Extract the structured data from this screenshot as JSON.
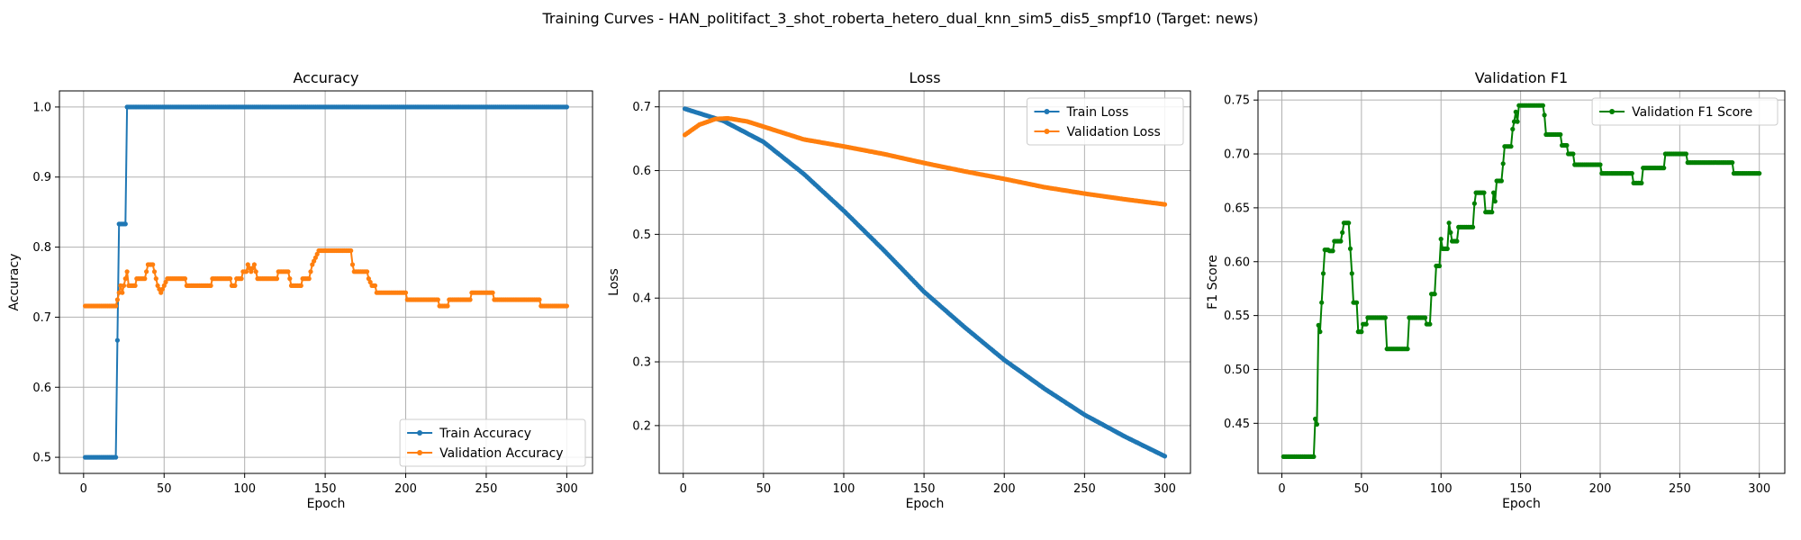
{
  "figure": {
    "title": "Training Curves - HAN_politifact_3_shot_roberta_hetero_dual_knn_sim5_dis5_smpf10 (Target: news)"
  },
  "colors": {
    "train": "#1f77b4",
    "validation": "#ff7f0e",
    "f1": "#008000"
  },
  "chart_data": [
    {
      "type": "line",
      "title": "Accuracy",
      "xlabel": "Epoch",
      "ylabel": "Accuracy",
      "xlim": [
        -15,
        316
      ],
      "ylim": [
        0.477,
        1.023
      ],
      "xticks": [
        0,
        50,
        100,
        150,
        200,
        250,
        300
      ],
      "yticks": [
        0.5,
        0.6,
        0.7,
        0.8,
        0.9,
        1.0
      ],
      "yticks_text": [
        "0.5",
        "0.6",
        "0.7",
        "0.8",
        "0.9",
        "1.0"
      ],
      "grid": true,
      "legend_position": "lower right",
      "series": [
        {
          "name": "Train Accuracy",
          "color": "#1f77b4",
          "points": [
            [
              1,
              0.5
            ],
            [
              20,
              0.5
            ],
            [
              21,
              0.667
            ],
            [
              22,
              0.833
            ],
            [
              26,
              0.833
            ],
            [
              27,
              1.0
            ],
            [
              300,
              1.0
            ]
          ]
        },
        {
          "name": "Validation Accuracy",
          "color": "#ff7f0e",
          "points": [
            [
              1,
              0.716
            ],
            [
              20,
              0.716
            ],
            [
              21,
              0.725
            ],
            [
              22,
              0.735
            ],
            [
              23,
              0.745
            ],
            [
              24,
              0.735
            ],
            [
              26,
              0.755
            ],
            [
              27,
              0.765
            ],
            [
              28,
              0.745
            ],
            [
              32,
              0.745
            ],
            [
              33,
              0.755
            ],
            [
              38,
              0.755
            ],
            [
              39,
              0.765
            ],
            [
              40,
              0.775
            ],
            [
              43,
              0.775
            ],
            [
              44,
              0.765
            ],
            [
              45,
              0.755
            ],
            [
              46,
              0.745
            ],
            [
              48,
              0.735
            ],
            [
              50,
              0.745
            ],
            [
              52,
              0.755
            ],
            [
              63,
              0.755
            ],
            [
              64,
              0.745
            ],
            [
              79,
              0.745
            ],
            [
              80,
              0.755
            ],
            [
              91,
              0.755
            ],
            [
              92,
              0.745
            ],
            [
              94,
              0.745
            ],
            [
              95,
              0.755
            ],
            [
              98,
              0.755
            ],
            [
              99,
              0.765
            ],
            [
              101,
              0.765
            ],
            [
              102,
              0.775
            ],
            [
              104,
              0.765
            ],
            [
              106,
              0.775
            ],
            [
              107,
              0.765
            ],
            [
              108,
              0.755
            ],
            [
              120,
              0.755
            ],
            [
              121,
              0.765
            ],
            [
              127,
              0.765
            ],
            [
              128,
              0.755
            ],
            [
              129,
              0.745
            ],
            [
              135,
              0.745
            ],
            [
              136,
              0.755
            ],
            [
              140,
              0.755
            ],
            [
              141,
              0.765
            ],
            [
              142,
              0.775
            ],
            [
              144,
              0.785
            ],
            [
              146,
              0.795
            ],
            [
              166,
              0.795
            ],
            [
              167,
              0.775
            ],
            [
              168,
              0.765
            ],
            [
              176,
              0.765
            ],
            [
              177,
              0.755
            ],
            [
              179,
              0.745
            ],
            [
              181,
              0.745
            ],
            [
              182,
              0.735
            ],
            [
              200,
              0.735
            ],
            [
              201,
              0.725
            ],
            [
              220,
              0.725
            ],
            [
              221,
              0.716
            ],
            [
              226,
              0.716
            ],
            [
              227,
              0.725
            ],
            [
              240,
              0.725
            ],
            [
              241,
              0.735
            ],
            [
              254,
              0.735
            ],
            [
              255,
              0.725
            ],
            [
              283,
              0.725
            ],
            [
              284,
              0.716
            ],
            [
              300,
              0.716
            ]
          ]
        }
      ]
    },
    {
      "type": "line",
      "title": "Loss",
      "xlabel": "Epoch",
      "ylabel": "Loss",
      "xlim": [
        -15,
        316
      ],
      "ylim": [
        0.125,
        0.725
      ],
      "xticks": [
        0,
        50,
        100,
        150,
        200,
        250,
        300
      ],
      "yticks": [
        0.2,
        0.3,
        0.4,
        0.5,
        0.6,
        0.7
      ],
      "yticks_text": [
        "0.2",
        "0.3",
        "0.4",
        "0.5",
        "0.6",
        "0.7"
      ],
      "grid": true,
      "legend_position": "upper right",
      "series": [
        {
          "name": "Train Loss",
          "color": "#1f77b4",
          "points": [
            [
              1,
              0.697
            ],
            [
              25,
              0.678
            ],
            [
              50,
              0.645
            ],
            [
              75,
              0.595
            ],
            [
              100,
              0.537
            ],
            [
              125,
              0.475
            ],
            [
              150,
              0.41
            ],
            [
              175,
              0.355
            ],
            [
              200,
              0.303
            ],
            [
              225,
              0.258
            ],
            [
              250,
              0.217
            ],
            [
              275,
              0.183
            ],
            [
              300,
              0.152
            ]
          ]
        },
        {
          "name": "Validation Loss",
          "color": "#ff7f0e",
          "points": [
            [
              1,
              0.656
            ],
            [
              10,
              0.672
            ],
            [
              20,
              0.681
            ],
            [
              28,
              0.682
            ],
            [
              40,
              0.677
            ],
            [
              50,
              0.669
            ],
            [
              75,
              0.649
            ],
            [
              100,
              0.638
            ],
            [
              125,
              0.626
            ],
            [
              150,
              0.612
            ],
            [
              175,
              0.599
            ],
            [
              200,
              0.587
            ],
            [
              225,
              0.574
            ],
            [
              250,
              0.564
            ],
            [
              275,
              0.555
            ],
            [
              300,
              0.547
            ]
          ]
        }
      ]
    },
    {
      "type": "line",
      "title": "Validation F1",
      "xlabel": "Epoch",
      "ylabel": "F1 Score",
      "xlim": [
        -15,
        316
      ],
      "ylim": [
        0.4035,
        0.7585
      ],
      "xticks": [
        0,
        50,
        100,
        150,
        200,
        250,
        300
      ],
      "yticks": [
        0.45,
        0.5,
        0.55,
        0.6,
        0.65,
        0.7,
        0.75
      ],
      "yticks_text": [
        "0.45",
        "0.50",
        "0.55",
        "0.60",
        "0.65",
        "0.70",
        "0.75"
      ],
      "grid": true,
      "legend_position": "upper right",
      "series": [
        {
          "name": "Validation F1 Score",
          "color": "#008000",
          "points": [
            [
              1,
              0.419
            ],
            [
              20,
              0.419
            ],
            [
              21,
              0.454
            ],
            [
              22,
              0.449
            ],
            [
              23,
              0.541
            ],
            [
              24,
              0.535
            ],
            [
              26,
              0.589
            ],
            [
              27,
              0.611
            ],
            [
              29,
              0.611
            ],
            [
              30,
              0.61
            ],
            [
              32,
              0.61
            ],
            [
              33,
              0.619
            ],
            [
              37,
              0.619
            ],
            [
              38,
              0.627
            ],
            [
              39,
              0.636
            ],
            [
              42,
              0.636
            ],
            [
              43,
              0.612
            ],
            [
              44,
              0.589
            ],
            [
              45,
              0.562
            ],
            [
              47,
              0.562
            ],
            [
              48,
              0.535
            ],
            [
              50,
              0.535
            ],
            [
              51,
              0.542
            ],
            [
              53,
              0.542
            ],
            [
              54,
              0.548
            ],
            [
              65,
              0.548
            ],
            [
              66,
              0.519
            ],
            [
              79,
              0.519
            ],
            [
              80,
              0.548
            ],
            [
              90,
              0.548
            ],
            [
              91,
              0.542
            ],
            [
              93,
              0.542
            ],
            [
              94,
              0.57
            ],
            [
              96,
              0.57
            ],
            [
              97,
              0.596
            ],
            [
              99,
              0.596
            ],
            [
              100,
              0.621
            ],
            [
              101,
              0.612
            ],
            [
              104,
              0.612
            ],
            [
              105,
              0.636
            ],
            [
              106,
              0.627
            ],
            [
              107,
              0.619
            ],
            [
              110,
              0.619
            ],
            [
              111,
              0.632
            ],
            [
              120,
              0.632
            ],
            [
              121,
              0.654
            ],
            [
              122,
              0.664
            ],
            [
              127,
              0.664
            ],
            [
              128,
              0.646
            ],
            [
              132,
              0.646
            ],
            [
              133,
              0.664
            ],
            [
              134,
              0.656
            ],
            [
              135,
              0.675
            ],
            [
              138,
              0.675
            ],
            [
              139,
              0.691
            ],
            [
              140,
              0.707
            ],
            [
              144,
              0.707
            ],
            [
              145,
              0.723
            ],
            [
              146,
              0.73
            ],
            [
              147,
              0.739
            ],
            [
              148,
              0.73
            ],
            [
              149,
              0.745
            ],
            [
              164,
              0.745
            ],
            [
              165,
              0.736
            ],
            [
              166,
              0.718
            ],
            [
              175,
              0.718
            ],
            [
              176,
              0.708
            ],
            [
              179,
              0.708
            ],
            [
              180,
              0.7
            ],
            [
              183,
              0.7
            ],
            [
              184,
              0.69
            ],
            [
              200,
              0.69
            ],
            [
              201,
              0.682
            ],
            [
              220,
              0.682
            ],
            [
              221,
              0.673
            ],
            [
              226,
              0.673
            ],
            [
              227,
              0.687
            ],
            [
              240,
              0.687
            ],
            [
              241,
              0.7
            ],
            [
              254,
              0.7
            ],
            [
              255,
              0.692
            ],
            [
              283,
              0.692
            ],
            [
              284,
              0.682
            ],
            [
              300,
              0.682
            ]
          ]
        }
      ]
    }
  ]
}
